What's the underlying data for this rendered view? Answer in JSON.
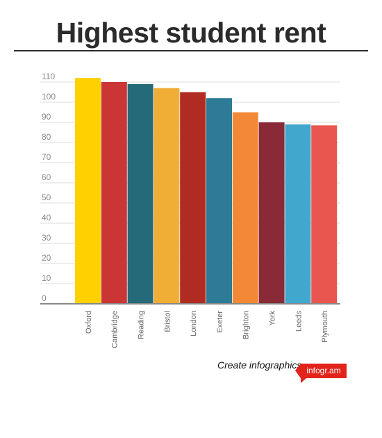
{
  "title": "Highest student rent",
  "footer": {
    "cta": "Create infographics",
    "brand": "infogr.am"
  },
  "chart_data": {
    "type": "bar",
    "title": "Highest student rent",
    "xlabel": "",
    "ylabel": "",
    "ylim": [
      0,
      110
    ],
    "yticks": [
      0,
      10,
      20,
      30,
      40,
      50,
      60,
      70,
      80,
      90,
      100,
      110
    ],
    "grid": true,
    "categories": [
      "Oxford",
      "Cambridge",
      "Reading",
      "Bristol",
      "London",
      "Exeter",
      "Brighton",
      "York",
      "Leeds",
      "Plymouth"
    ],
    "values": [
      112,
      110,
      109,
      107,
      105,
      102,
      95,
      90,
      89,
      88.5
    ],
    "colors": [
      "#ffd100",
      "#cc3535",
      "#256a78",
      "#f1ae37",
      "#b02b22",
      "#2d7b96",
      "#f38936",
      "#8a2a37",
      "#41a7cd",
      "#e9564f"
    ]
  }
}
